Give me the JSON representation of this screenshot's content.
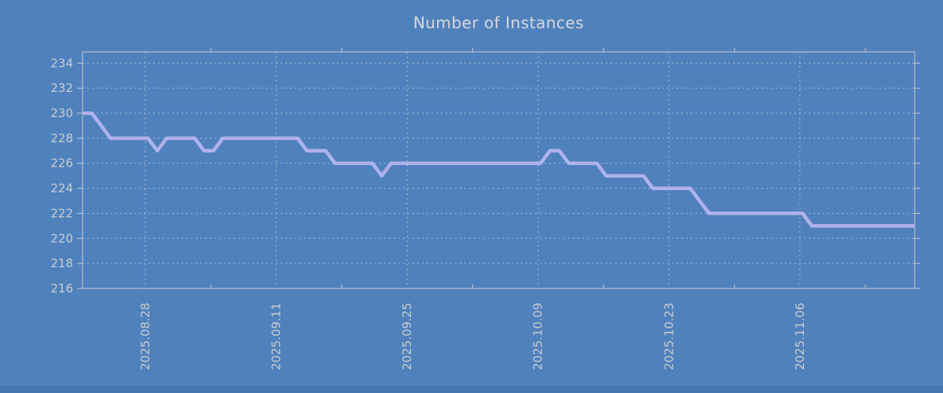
{
  "window": {
    "background_color": "#4f81bd",
    "bottom_bar_color": "rgba(0,0,0,0.08)"
  },
  "chart_data": {
    "type": "line",
    "title": "Number of Instances",
    "xlabel": "",
    "ylabel": "",
    "grid": true,
    "legend_position": "none",
    "colors": {
      "line": "#b0b2ec",
      "grid": "#c9c9c9",
      "axis": "#c9c9c9",
      "tick_text": "#cccccc",
      "title_text": "#d9d9d9"
    },
    "ylim": [
      216,
      234.9
    ],
    "yticks": [
      216,
      218,
      220,
      222,
      224,
      226,
      228,
      230,
      232,
      234
    ],
    "xlim_days": [
      0,
      89
    ],
    "xticks": [
      {
        "day": 6.72,
        "label": "2025.08.28"
      },
      {
        "day": 20.72,
        "label": "2025.09.11"
      },
      {
        "day": 34.72,
        "label": "2025.09.25"
      },
      {
        "day": 48.72,
        "label": "2025.10.09"
      },
      {
        "day": 62.72,
        "label": "2025.10.23"
      },
      {
        "day": 76.72,
        "label": "2025.11.06"
      }
    ],
    "minor_xticks_days": [
      13.72,
      27.72,
      41.72,
      55.72,
      69.72,
      83.72
    ],
    "series": [
      {
        "name": "instances",
        "color": "#b0b2ec",
        "values": [
          230,
          230,
          229,
          228,
          228,
          228,
          228,
          228,
          227,
          228,
          228,
          228,
          228,
          227,
          227,
          228,
          228,
          228,
          228,
          228,
          228,
          228,
          228,
          228,
          227,
          227,
          227,
          226,
          226,
          226,
          226,
          226,
          225,
          226,
          226,
          226,
          226,
          226,
          226,
          226,
          226,
          226,
          226,
          226,
          226,
          226,
          226,
          226,
          226,
          226,
          227,
          227,
          226,
          226,
          226,
          226,
          225,
          225,
          225,
          225,
          225,
          224,
          224,
          224,
          224,
          224,
          223,
          222,
          222,
          222,
          222,
          222,
          222,
          222,
          222,
          222,
          222,
          222,
          221,
          221,
          221,
          221,
          221,
          221,
          221,
          221,
          221,
          221,
          221,
          221
        ]
      }
    ]
  }
}
